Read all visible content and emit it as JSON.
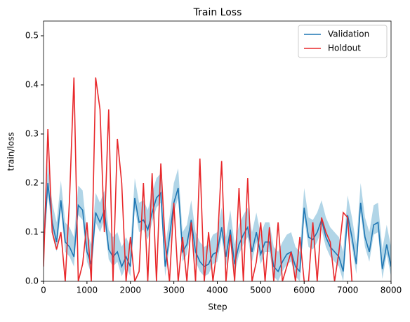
{
  "chart_data": {
    "type": "line",
    "title": "Train Loss",
    "x_label": "Step",
    "y_label": "train/loss",
    "x": [
      0,
      100,
      200,
      300,
      400,
      500,
      600,
      700,
      800,
      900,
      1000,
      1100,
      1200,
      1300,
      1400,
      1500,
      1600,
      1700,
      1800,
      1900,
      2000,
      2100,
      2200,
      2300,
      2400,
      2500,
      2600,
      2700,
      2800,
      2900,
      3000,
      3100,
      3200,
      3300,
      3400,
      3500,
      3600,
      3700,
      3800,
      3900,
      4000,
      4100,
      4200,
      4300,
      4400,
      4500,
      4600,
      4700,
      4800,
      4900,
      5000,
      5100,
      5200,
      5300,
      5400,
      5500,
      5600,
      5700,
      5800,
      5900,
      6000,
      6100,
      6200,
      6300,
      6400,
      6500,
      6600,
      6700,
      6800,
      6900,
      7000,
      7100,
      7200,
      7300,
      7400,
      7500,
      7600,
      7700,
      7800,
      7900,
      8000
    ],
    "series": [
      {
        "name": "Validation",
        "color": "#1f77b4",
        "band_color": "#9ecae1",
        "values": [
          0.07,
          0.2,
          0.12,
          0.08,
          0.165,
          0.08,
          0.07,
          0.05,
          0.155,
          0.145,
          0.06,
          0.035,
          0.14,
          0.12,
          0.145,
          0.065,
          0.05,
          0.06,
          0.03,
          0.05,
          0.03,
          0.17,
          0.12,
          0.125,
          0.105,
          0.14,
          0.17,
          0.18,
          0.03,
          0.09,
          0.16,
          0.19,
          0.06,
          0.075,
          0.125,
          0.06,
          0.04,
          0.03,
          0.035,
          0.055,
          0.06,
          0.11,
          0.05,
          0.105,
          0.035,
          0.075,
          0.095,
          0.11,
          0.06,
          0.1,
          0.055,
          0.08,
          0.08,
          0.03,
          0.02,
          0.04,
          0.055,
          0.06,
          0.03,
          0.02,
          0.15,
          0.09,
          0.085,
          0.1,
          0.125,
          0.09,
          0.07,
          0.06,
          0.05,
          0.02,
          0.135,
          0.09,
          0.035,
          0.16,
          0.09,
          0.06,
          0.115,
          0.12,
          0.025,
          0.075,
          0.03
        ],
        "lower": [
          0.05,
          0.18,
          0.1,
          0.06,
          0.145,
          0.06,
          0.05,
          0.03,
          0.135,
          0.125,
          0.04,
          0.015,
          0.12,
          0.1,
          0.125,
          0.045,
          0.03,
          0.04,
          0.01,
          0.03,
          0.01,
          0.15,
          0.1,
          0.105,
          0.085,
          0.12,
          0.15,
          0.16,
          0.01,
          0.07,
          0.14,
          0.17,
          0.04,
          0.055,
          0.105,
          0.04,
          0.02,
          0.01,
          0.015,
          0.035,
          0.04,
          0.09,
          0.03,
          0.085,
          0.015,
          0.055,
          0.075,
          0.09,
          0.04,
          0.08,
          0.035,
          0.06,
          0.06,
          0.01,
          0,
          0.02,
          0.035,
          0.04,
          0.01,
          0,
          0.13,
          0.07,
          0.065,
          0.08,
          0.105,
          0.07,
          0.05,
          0.04,
          0.03,
          0,
          0.115,
          0.07,
          0.015,
          0.14,
          0.07,
          0.04,
          0.095,
          0.1,
          0.005,
          0.055,
          0.01
        ],
        "upper": [
          0.11,
          0.24,
          0.16,
          0.12,
          0.205,
          0.12,
          0.11,
          0.09,
          0.195,
          0.185,
          0.1,
          0.075,
          0.18,
          0.16,
          0.185,
          0.105,
          0.09,
          0.1,
          0.07,
          0.09,
          0.07,
          0.21,
          0.16,
          0.165,
          0.145,
          0.18,
          0.21,
          0.22,
          0.07,
          0.13,
          0.2,
          0.23,
          0.1,
          0.115,
          0.165,
          0.1,
          0.08,
          0.07,
          0.075,
          0.095,
          0.1,
          0.15,
          0.09,
          0.145,
          0.075,
          0.115,
          0.135,
          0.15,
          0.1,
          0.14,
          0.095,
          0.12,
          0.12,
          0.07,
          0.06,
          0.08,
          0.095,
          0.1,
          0.07,
          0.06,
          0.19,
          0.13,
          0.125,
          0.14,
          0.165,
          0.13,
          0.11,
          0.1,
          0.09,
          0.06,
          0.175,
          0.13,
          0.075,
          0.2,
          0.13,
          0.1,
          0.155,
          0.16,
          0.065,
          0.115,
          0.07
        ]
      },
      {
        "name": "Holdout",
        "color": "#e8282b",
        "values": [
          0.03,
          0.31,
          0.1,
          0.065,
          0.1,
          0.0,
          0.17,
          0.415,
          0.0,
          0.035,
          0.12,
          0.0,
          0.415,
          0.35,
          0.1,
          0.35,
          0.0,
          0.29,
          0.2,
          0.0,
          0.09,
          0.0,
          0.02,
          0.2,
          0.0,
          0.22,
          0.0,
          0.24,
          0.08,
          0.0,
          0.16,
          0.0,
          0.09,
          0.0,
          0.12,
          0.0,
          0.25,
          0.0,
          0.1,
          0.0,
          0.07,
          0.245,
          0.0,
          0.095,
          0.0,
          0.19,
          0.0,
          0.21,
          0.0,
          0.04,
          0.12,
          0.0,
          0.11,
          0.0,
          0.12,
          0.0,
          0.03,
          0.06,
          0.0,
          0.09,
          0.0,
          0.0,
          0.12,
          0.0,
          0.13,
          0.1,
          0.08,
          0.0,
          0.06,
          0.14,
          0.13,
          0.0,
          null,
          null,
          null,
          null,
          null,
          null,
          null,
          null,
          null
        ]
      }
    ],
    "xlim": [
      0,
      8000
    ],
    "ylim": [
      0,
      0.53
    ],
    "xticks": [
      0,
      1000,
      2000,
      3000,
      4000,
      5000,
      6000,
      7000,
      8000
    ],
    "yticks": [
      {
        "value": 0,
        "label": "0.0"
      },
      0.1,
      0.2,
      0.3,
      0.4,
      0.5
    ],
    "legend": "upper right"
  }
}
